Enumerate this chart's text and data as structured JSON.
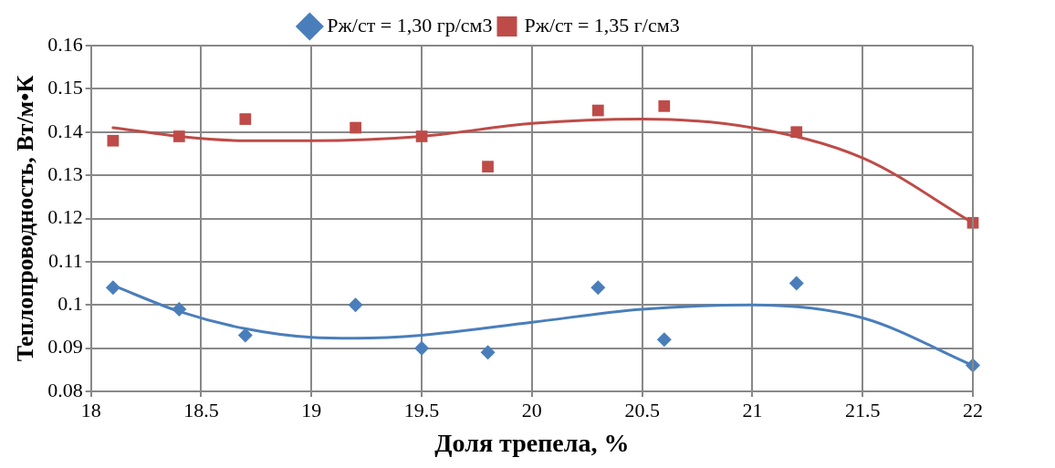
{
  "chart_data": {
    "type": "scatter",
    "xlabel": "Доля трепела, %",
    "ylabel": "Теплопроводность, Вт/м•К",
    "xlim": [
      18,
      22
    ],
    "xticks": [
      18,
      18.5,
      19,
      19.5,
      20,
      20.5,
      21,
      21.5,
      22
    ],
    "ylim": [
      0.08,
      0.16
    ],
    "yticks": [
      0.08,
      0.09,
      0.1,
      0.11,
      0.12,
      0.13,
      0.14,
      0.15,
      0.16
    ],
    "grid": true,
    "legend": "top",
    "series": [
      {
        "name": "Рж/ст = 1,30 гр/см3",
        "type": "scatter",
        "marker": "diamond",
        "color": "#4a7ebb",
        "x": [
          18.1,
          18.4,
          18.7,
          19.2,
          19.5,
          19.8,
          20.3,
          20.6,
          21.2,
          22
        ],
        "values": [
          0.104,
          0.099,
          0.093,
          0.1,
          0.09,
          0.089,
          0.104,
          0.092,
          0.105,
          0.086
        ]
      },
      {
        "name": "Рж/ст = 1,35 г/см3",
        "type": "scatter",
        "marker": "square",
        "color": "#be4b48",
        "x": [
          18.1,
          18.4,
          18.7,
          19.2,
          19.5,
          19.8,
          20.3,
          20.6,
          21.2,
          22
        ],
        "values": [
          0.138,
          0.139,
          0.143,
          0.141,
          0.139,
          0.132,
          0.145,
          0.146,
          0.14,
          0.119
        ]
      },
      {
        "type": "line",
        "marker": "none",
        "color": "#4a7ebb",
        "x": [
          18.1,
          18.4,
          18.7,
          19,
          19.2,
          19.5,
          20,
          20.5,
          21,
          21.5,
          22
        ],
        "values": [
          0.1045,
          0.0985,
          0.0945,
          0.0925,
          0.0923,
          0.093,
          0.096,
          0.099,
          0.1,
          0.097,
          0.086
        ]
      },
      {
        "type": "line",
        "marker": "none",
        "color": "#be4b48",
        "x": [
          18.1,
          18.4,
          18.7,
          19,
          19.5,
          20,
          20.5,
          21,
          21.5,
          22
        ],
        "values": [
          0.141,
          0.139,
          0.138,
          0.138,
          0.139,
          0.142,
          0.143,
          0.141,
          0.134,
          0.119
        ]
      }
    ]
  }
}
